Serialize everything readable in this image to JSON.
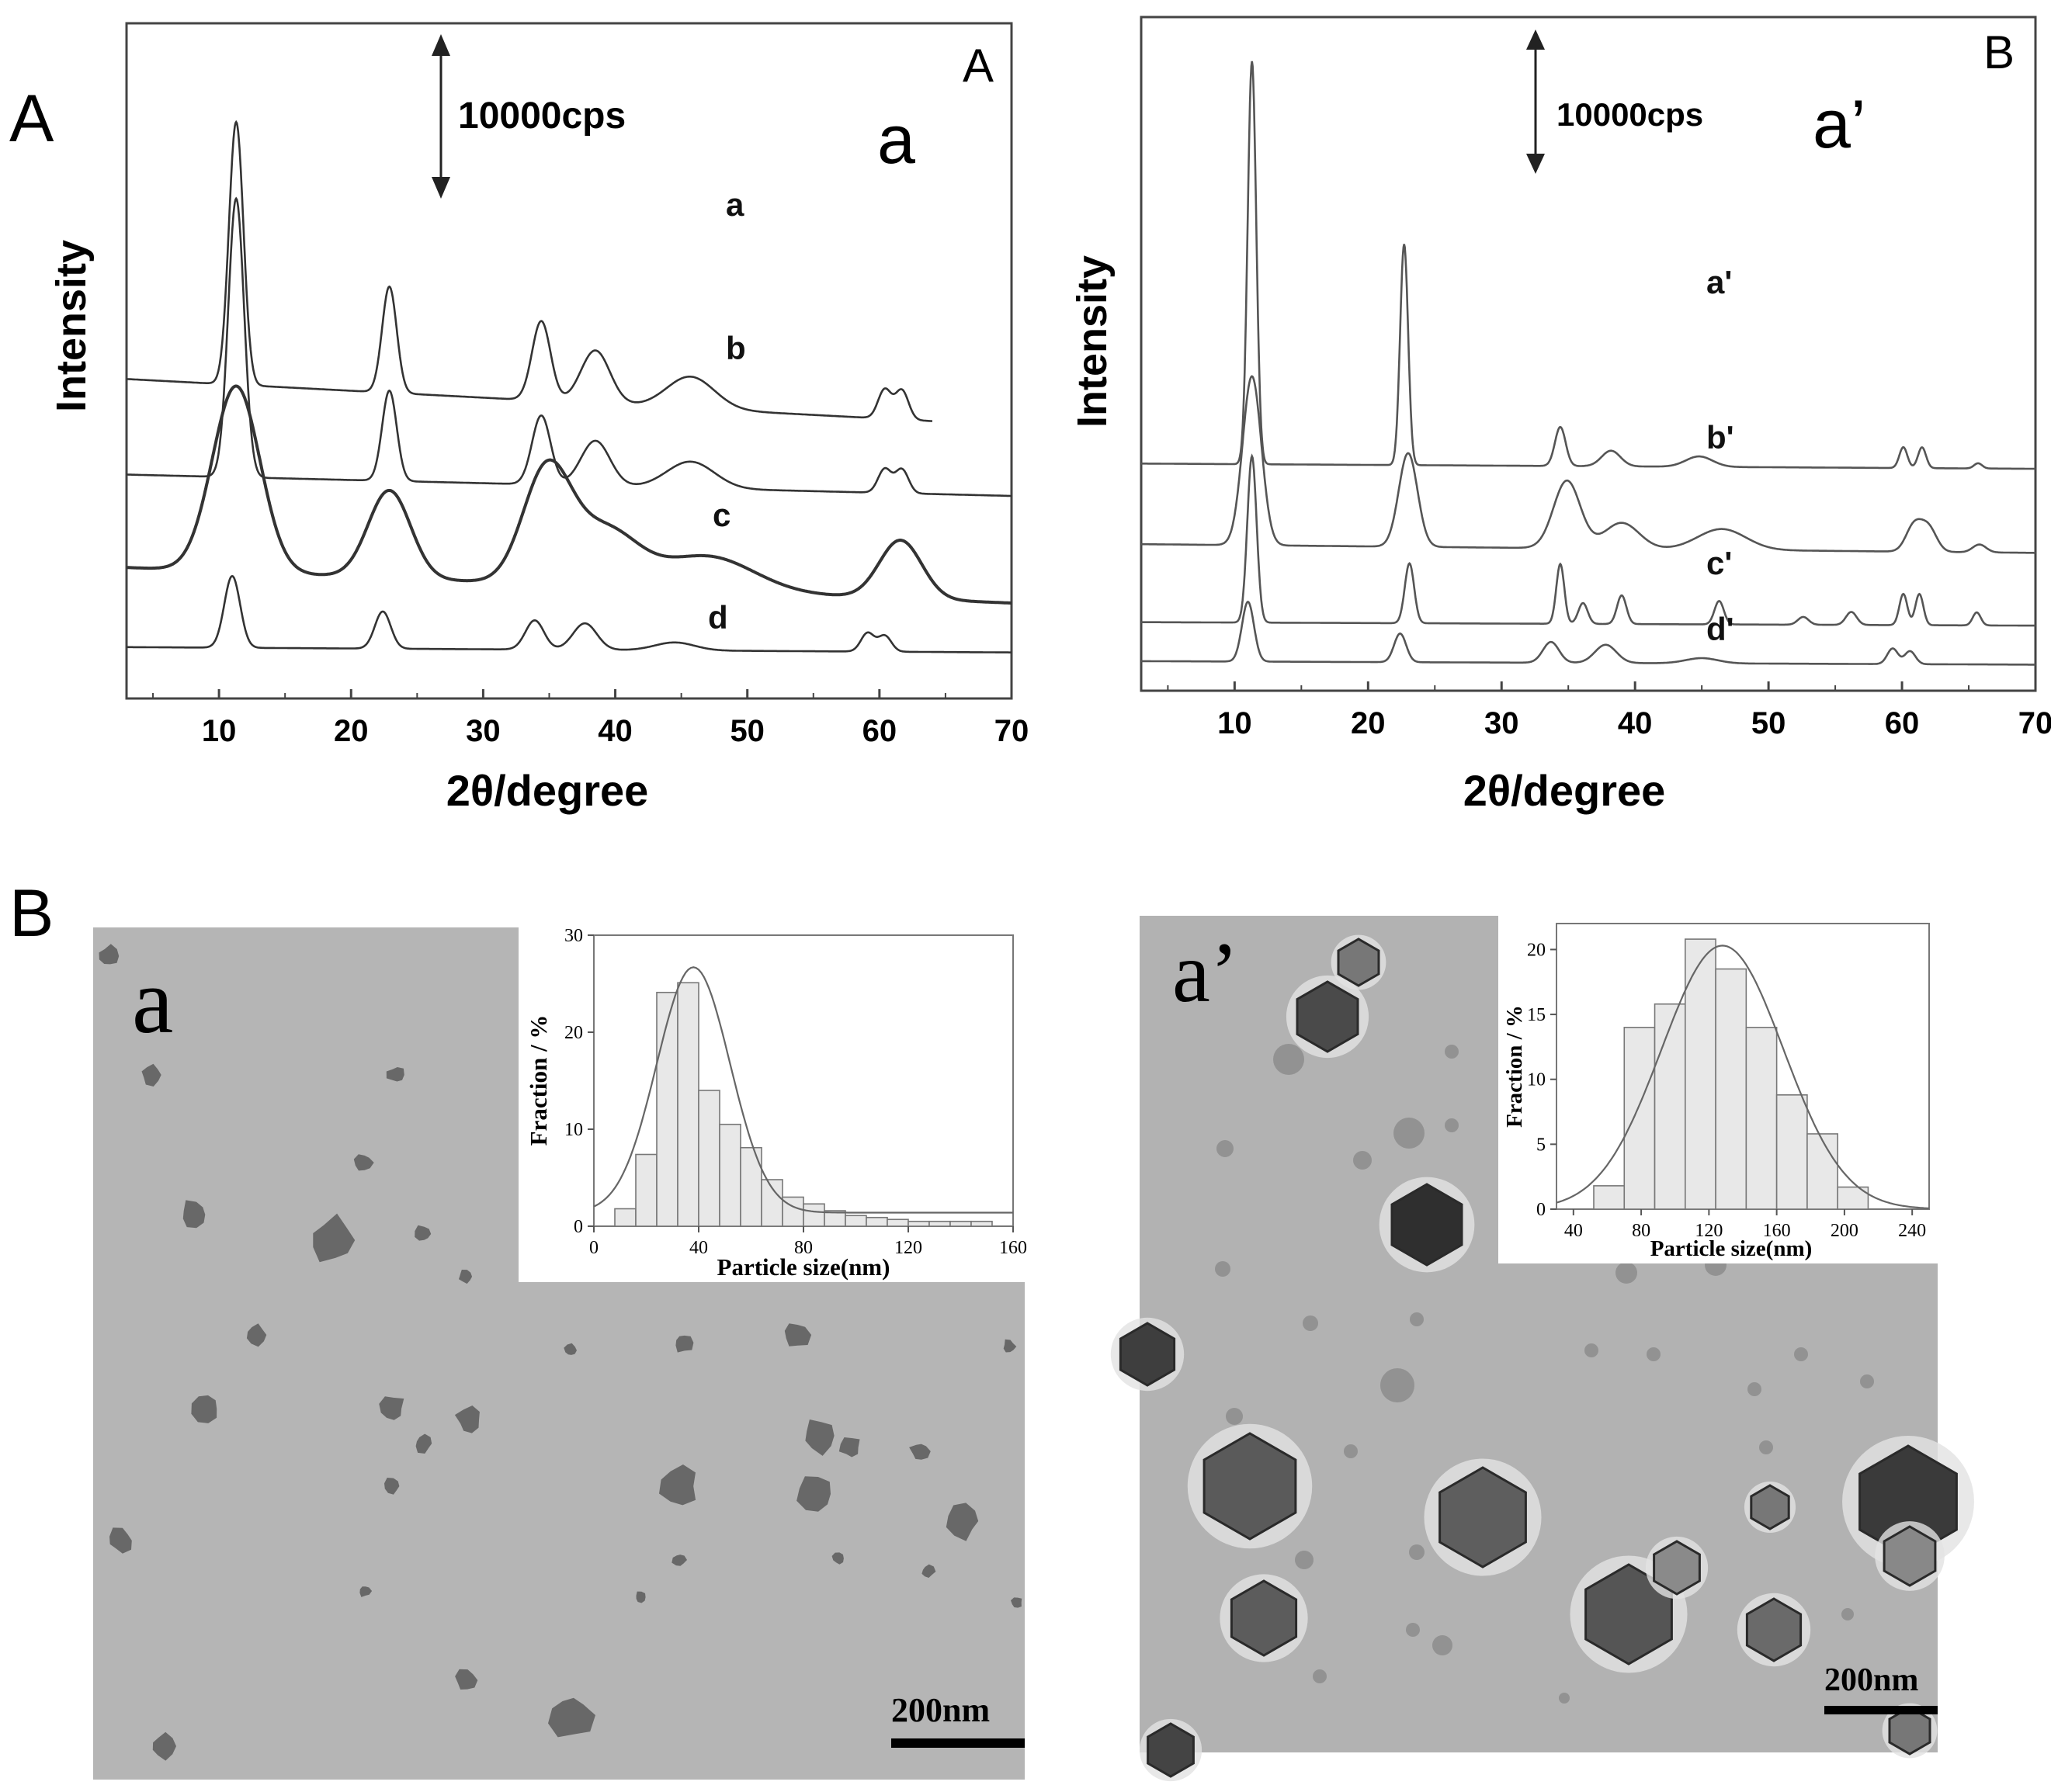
{
  "figure": {
    "section_label_top": "A",
    "section_label_bottom": "B"
  },
  "xrd_left": {
    "panel_corner_label": "A",
    "big_letter": "a",
    "scale_label": "10000cps",
    "ylabel": "Intensity",
    "xlabel": "2θ/degree",
    "curve_labels": [
      "a",
      "b",
      "c",
      "d"
    ]
  },
  "xrd_right": {
    "panel_corner_label": "B",
    "big_letter": "a’",
    "scale_label": "10000cps",
    "ylabel": "Intensity",
    "xlabel": "2θ/degree",
    "curve_labels": [
      "a'",
      "b'",
      "c'",
      "d'"
    ]
  },
  "tem_left": {
    "panel_letter": "a",
    "scale_bar_label": "200nm"
  },
  "tem_right": {
    "panel_letter": "a’",
    "scale_bar_label": "200nm"
  },
  "chart_data": [
    {
      "type": "line",
      "panel": "A-left",
      "title": "",
      "xlabel": "2θ/degree",
      "ylabel": "Intensity",
      "xlim": [
        3,
        70
      ],
      "xticks": [
        10,
        20,
        30,
        40,
        50,
        60,
        70
      ],
      "grid": false,
      "series": [
        {
          "name": "a",
          "baseline": 11.1,
          "slope": -0.026,
          "peaks": [
            [
              11.3,
              9.9,
              0.55
            ],
            [
              22.9,
              4.0,
              0.55
            ],
            [
              34.4,
              3.0,
              0.7
            ],
            [
              38.5,
              2.0,
              1.1
            ],
            [
              45.7,
              1.2,
              1.8
            ],
            [
              60.4,
              1.1,
              0.5
            ],
            [
              61.7,
              1.1,
              0.5
            ]
          ],
          "end_x": 64
        },
        {
          "name": "b",
          "baseline": 7.5,
          "slope": -0.012,
          "peaks": [
            [
              11.3,
              10.5,
              0.6
            ],
            [
              22.9,
              3.4,
              0.55
            ],
            [
              34.4,
              2.6,
              0.7
            ],
            [
              38.5,
              1.7,
              1.1
            ],
            [
              45.7,
              1.0,
              1.8
            ],
            [
              60.4,
              0.9,
              0.5
            ],
            [
              61.7,
              0.9,
              0.5
            ]
          ]
        },
        {
          "name": "c",
          "baseline": 4.0,
          "slope": -0.02,
          "peaks": [
            [
              11.3,
              7.0,
              1.8
            ],
            [
              22.9,
              3.3,
              1.6
            ],
            [
              34.8,
              4.2,
              1.8
            ],
            [
              39.2,
              2.1,
              2.5
            ],
            [
              47.0,
              1.3,
              3.5
            ],
            [
              61.6,
              2.2,
              1.6
            ]
          ]
        },
        {
          "name": "d",
          "baseline": 1.0,
          "slope": -0.003,
          "peaks": [
            [
              11.0,
              2.7,
              0.6
            ],
            [
              22.4,
              1.4,
              0.6
            ],
            [
              33.9,
              1.1,
              0.7
            ],
            [
              37.7,
              1.0,
              0.9
            ],
            [
              44.5,
              0.3,
              1.5
            ],
            [
              59.1,
              0.7,
              0.5
            ],
            [
              60.4,
              0.6,
              0.5
            ]
          ]
        }
      ]
    },
    {
      "type": "line",
      "panel": "A-right",
      "title": "",
      "xlabel": "2θ/degree",
      "ylabel": "Intensity",
      "xlim": [
        3,
        70
      ],
      "xticks": [
        10,
        20,
        30,
        40,
        50,
        60,
        70
      ],
      "grid": false,
      "series": [
        {
          "name": "a'",
          "baseline": 8.2,
          "slope": -0.003,
          "peaks": [
            [
              11.3,
              15.5,
              0.32
            ],
            [
              22.7,
              8.5,
              0.3
            ],
            [
              34.4,
              1.5,
              0.4
            ],
            [
              38.2,
              0.6,
              0.7
            ],
            [
              44.8,
              0.4,
              1.0
            ],
            [
              60.1,
              0.8,
              0.3
            ],
            [
              61.5,
              0.8,
              0.3
            ],
            [
              65.7,
              0.2,
              0.3
            ]
          ]
        },
        {
          "name": "b'",
          "baseline": 5.1,
          "slope": -0.005,
          "peaks": [
            [
              11.3,
              6.5,
              0.7
            ],
            [
              23.0,
              3.6,
              0.7
            ],
            [
              34.9,
              2.6,
              1.0
            ],
            [
              39.0,
              1.0,
              1.3
            ],
            [
              46.5,
              0.8,
              1.8
            ],
            [
              60.9,
              1.0,
              0.6
            ],
            [
              62.0,
              0.9,
              0.6
            ],
            [
              65.8,
              0.3,
              0.5
            ]
          ]
        },
        {
          "name": "c'",
          "baseline": 2.1,
          "slope": -0.002,
          "peaks": [
            [
              11.3,
              6.4,
              0.35
            ],
            [
              23.1,
              2.3,
              0.35
            ],
            [
              34.4,
              2.3,
              0.3
            ],
            [
              36.1,
              0.8,
              0.35
            ],
            [
              39.0,
              1.1,
              0.35
            ],
            [
              46.3,
              0.9,
              0.35
            ],
            [
              52.6,
              0.3,
              0.4
            ],
            [
              56.2,
              0.5,
              0.4
            ],
            [
              60.1,
              1.2,
              0.3
            ],
            [
              61.3,
              1.2,
              0.3
            ],
            [
              65.6,
              0.5,
              0.3
            ]
          ]
        },
        {
          "name": "d'",
          "baseline": 0.6,
          "slope": -0.002,
          "peaks": [
            [
              11.0,
              2.3,
              0.45
            ],
            [
              22.4,
              1.1,
              0.45
            ],
            [
              33.7,
              0.8,
              0.6
            ],
            [
              37.8,
              0.7,
              0.8
            ],
            [
              45.0,
              0.2,
              1.2
            ],
            [
              59.3,
              0.6,
              0.4
            ],
            [
              60.6,
              0.5,
              0.4
            ]
          ]
        }
      ]
    },
    {
      "type": "bar",
      "panel": "B-left inset",
      "title": "",
      "xlabel": "Particle size(nm)",
      "ylabel": "Fraction / %",
      "xlim": [
        0,
        160
      ],
      "ylim": [
        0,
        30
      ],
      "xticks": [
        0,
        40,
        80,
        120,
        160
      ],
      "yticks": [
        0,
        10,
        20,
        30
      ],
      "bin_width": 8,
      "bin_starts": [
        8,
        16,
        24,
        32,
        40,
        48,
        56,
        64,
        72,
        80,
        88,
        96,
        104,
        112,
        120,
        128,
        136,
        144
      ],
      "values": [
        1.8,
        7.4,
        24.1,
        25.1,
        14.0,
        10.5,
        8.1,
        4.8,
        3.0,
        2.3,
        1.6,
        1.1,
        0.9,
        0.7,
        0.5,
        0.5,
        0.5,
        0.5
      ],
      "fit": {
        "type": "gaussian",
        "mean": 38,
        "sigma": 14,
        "peak": 25.3,
        "offset": 1.4
      }
    },
    {
      "type": "bar",
      "panel": "B-right inset",
      "title": "",
      "xlabel": "Particle size(nm)",
      "ylabel": "Fraction / %",
      "xlim": [
        30,
        250
      ],
      "ylim": [
        0,
        22
      ],
      "xticks": [
        40,
        80,
        120,
        160,
        200,
        240
      ],
      "yticks": [
        0,
        5,
        10,
        15,
        20
      ],
      "bin_width": 18,
      "bin_starts": [
        52,
        70,
        88,
        106,
        124,
        142,
        160,
        178,
        196
      ],
      "values": [
        1.8,
        14.0,
        15.8,
        20.8,
        18.5,
        14.0,
        8.8,
        5.8,
        1.7
      ],
      "fit": {
        "type": "gaussian",
        "mean": 128,
        "sigma": 36,
        "peak": 20.3,
        "offset": 0
      }
    }
  ]
}
